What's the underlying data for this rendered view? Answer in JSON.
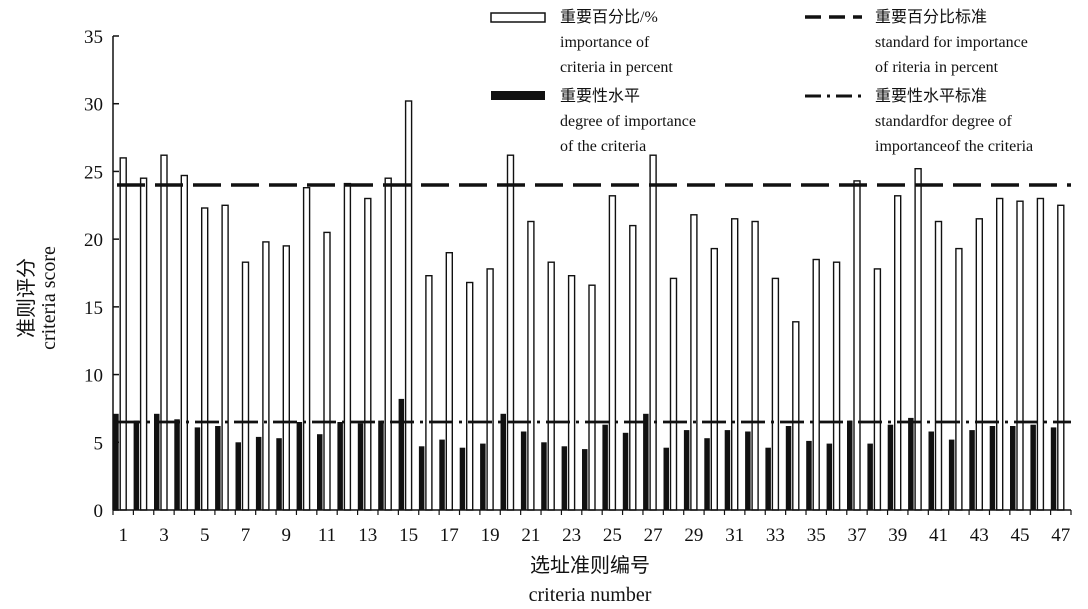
{
  "colors": {
    "axis": "#111111",
    "percent_bar_fill": "#ffffff",
    "percent_bar_stroke": "#111111",
    "level_bar_fill": "#111111",
    "standard_line": "#111111"
  },
  "chart_data": {
    "type": "bar",
    "title": "",
    "xlabel": [
      "选址准则编号",
      "criteria number"
    ],
    "ylabel": [
      "准则评分",
      "criteria score"
    ],
    "ylim": [
      0,
      35
    ],
    "yticks": [
      0,
      5,
      10,
      15,
      20,
      25,
      30,
      35
    ],
    "xticks": [
      "1",
      "3",
      "5",
      "7",
      "9",
      "11",
      "13",
      "15",
      "17",
      "19",
      "21",
      "23",
      "25",
      "27",
      "29",
      "31",
      "33",
      "35",
      "37",
      "39",
      "41",
      "43",
      "45",
      "47"
    ],
    "grid": false,
    "legend_position": "top-right",
    "categories": [
      1,
      2,
      3,
      4,
      5,
      6,
      7,
      8,
      9,
      10,
      11,
      12,
      13,
      14,
      15,
      16,
      17,
      18,
      19,
      20,
      21,
      22,
      23,
      24,
      25,
      26,
      27,
      28,
      29,
      30,
      31,
      32,
      33,
      34,
      35,
      36,
      37,
      38,
      39,
      40,
      41,
      42,
      43,
      44,
      45,
      46,
      47
    ],
    "series": [
      {
        "name": [
          "重要百分比/%",
          "importance of",
          "criteria in percent"
        ],
        "style": "hollow-bar",
        "values": [
          26.0,
          24.5,
          26.2,
          24.7,
          22.3,
          22.5,
          18.3,
          19.8,
          19.5,
          23.8,
          20.5,
          24.1,
          23.0,
          24.5,
          30.2,
          17.3,
          19.0,
          16.8,
          17.8,
          26.2,
          21.3,
          18.3,
          17.3,
          16.6,
          23.2,
          21.0,
          26.2,
          17.1,
          21.8,
          19.3,
          21.5,
          21.3,
          17.1,
          13.9,
          18.5,
          18.3,
          24.3,
          17.8,
          23.2,
          25.2,
          21.3,
          19.3,
          21.5,
          23.0,
          22.8,
          23.0,
          22.5
        ]
      },
      {
        "name": [
          "重要性水平",
          "degree of importance",
          "of the criteria"
        ],
        "style": "solid-bar",
        "values": [
          7.1,
          6.6,
          7.1,
          6.7,
          6.1,
          6.2,
          5.0,
          5.4,
          5.3,
          6.5,
          5.6,
          6.5,
          6.4,
          6.6,
          8.2,
          4.7,
          5.2,
          4.6,
          4.9,
          7.1,
          5.8,
          5.0,
          4.7,
          4.5,
          6.3,
          5.7,
          7.1,
          4.6,
          5.9,
          5.3,
          5.9,
          5.8,
          4.6,
          6.2,
          5.1,
          4.9,
          6.6,
          4.9,
          6.3,
          6.8,
          5.8,
          5.2,
          5.9,
          6.2,
          6.2,
          6.3,
          6.1
        ]
      }
    ],
    "reference_lines": [
      {
        "name": [
          "重要百分比标准",
          "standard for importance",
          "of riteria in percent"
        ],
        "style": "dashed",
        "value": 24
      },
      {
        "name": [
          "重要性水平标准",
          "standardfor degree of",
          "importanceof the criteria"
        ],
        "style": "dash-dot",
        "value": 6.5
      }
    ]
  }
}
